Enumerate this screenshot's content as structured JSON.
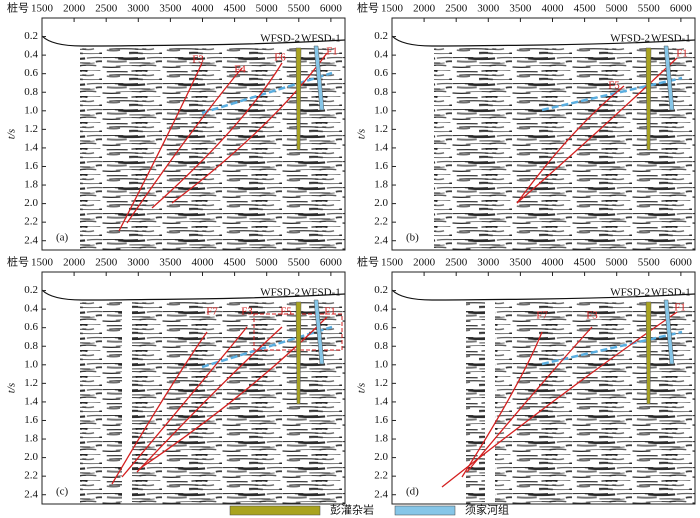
{
  "chart_data": [
    {
      "type": "seismic",
      "panel_label": "(a)",
      "x_label": "桩号",
      "y_label": "t/s",
      "xlim": [
        1500,
        6220
      ],
      "ylim": [
        0,
        2.5
      ],
      "y_inverted": true,
      "xticks": [
        1500,
        2000,
        2500,
        3000,
        3500,
        4000,
        4500,
        5000,
        5500,
        6000
      ],
      "yticks": [
        0.2,
        0.4,
        0.6,
        0.8,
        {
          "value": 1,
          "label": "1.0"
        },
        1.2,
        1.4,
        1.6,
        1.8,
        {
          "value": 2,
          "label": "2.0"
        },
        2.2,
        2.4
      ],
      "wells": [
        "WFSD-2",
        "WFSD-1"
      ],
      "faults": [
        "F3",
        "F4",
        "F6",
        "F1"
      ]
    },
    {
      "type": "seismic",
      "panel_label": "(b)",
      "x_label": "桩号",
      "y_label": "t/s",
      "xlim": [
        1500,
        6220
      ],
      "ylim": [
        0,
        2.5
      ],
      "y_inverted": true,
      "xticks": [
        1500,
        2000,
        2500,
        3000,
        3500,
        4000,
        4500,
        5000,
        5500,
        6000
      ],
      "yticks": [
        0.2,
        0.4,
        0.6,
        0.8,
        {
          "value": 1,
          "label": "1.0"
        },
        1.2,
        1.4,
        1.6,
        1.8,
        {
          "value": 2,
          "label": "2.0"
        },
        2.2,
        2.4
      ],
      "wells": [
        "WFSD-2",
        "WFSD-1"
      ],
      "faults": [
        "F5",
        "F1"
      ]
    },
    {
      "type": "seismic",
      "panel_label": "(c)",
      "x_label": "桩号",
      "y_label": "t/s",
      "xlim": [
        1500,
        6220
      ],
      "ylim": [
        0,
        2.5
      ],
      "y_inverted": true,
      "xticks": [
        1500,
        2000,
        2500,
        3000,
        3500,
        4000,
        4500,
        5000,
        5500,
        6000
      ],
      "yticks": [
        0.2,
        0.4,
        0.6,
        0.8,
        {
          "value": 1,
          "label": "1.0"
        },
        1.2,
        1.4,
        1.6,
        1.8,
        {
          "value": 2,
          "label": "2.0"
        },
        2.2,
        2.4
      ],
      "wells": [
        "WFSD-2",
        "WFSD-1"
      ],
      "faults": [
        "F7",
        "F3",
        "F5",
        "F1"
      ]
    },
    {
      "type": "seismic",
      "panel_label": "(d)",
      "x_label": "桩号",
      "y_label": "t/s",
      "xlim": [
        1500,
        6220
      ],
      "ylim": [
        0,
        2.5
      ],
      "y_inverted": true,
      "xticks": [
        1500,
        2000,
        2500,
        3000,
        3500,
        4000,
        4500,
        5000,
        5500,
        6000
      ],
      "yticks": [
        0.2,
        0.4,
        0.6,
        0.8,
        {
          "value": 1,
          "label": "1.0"
        },
        1.2,
        1.4,
        1.6,
        1.8,
        {
          "value": 2,
          "label": "2.0"
        },
        2.2,
        2.4
      ],
      "wells": [
        "WFSD-2",
        "WFSD-1"
      ],
      "faults": [
        "F7",
        "F3",
        "F1"
      ]
    }
  ],
  "legend": [
    {
      "label": "彭灌杂岩",
      "color": "#a9a31f"
    },
    {
      "label": "须家河组",
      "color": "#86c6e8"
    }
  ]
}
